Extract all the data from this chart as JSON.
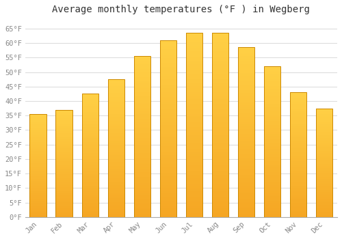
{
  "title": "Average monthly temperatures (°F ) in Wegberg",
  "months": [
    "Jan",
    "Feb",
    "Mar",
    "Apr",
    "May",
    "Jun",
    "Jul",
    "Aug",
    "Sep",
    "Oct",
    "Nov",
    "Dec"
  ],
  "values": [
    35.5,
    37.0,
    42.5,
    47.5,
    55.5,
    61.0,
    63.5,
    63.5,
    58.5,
    52.0,
    43.0,
    37.5
  ],
  "bar_color_top": "#FFD045",
  "bar_color_bottom": "#F5A623",
  "bar_edge_color": "#CC8800",
  "background_color": "#ffffff",
  "grid_color": "#dddddd",
  "ylim": [
    0,
    68
  ],
  "yticks": [
    0,
    5,
    10,
    15,
    20,
    25,
    30,
    35,
    40,
    45,
    50,
    55,
    60,
    65
  ],
  "ytick_labels": [
    "0°F",
    "5°F",
    "10°F",
    "15°F",
    "20°F",
    "25°F",
    "30°F",
    "35°F",
    "40°F",
    "45°F",
    "50°F",
    "55°F",
    "60°F",
    "65°F"
  ],
  "title_fontsize": 10,
  "tick_fontsize": 7.5,
  "font_family": "monospace",
  "tick_color": "#888888",
  "spine_color": "#aaaaaa"
}
